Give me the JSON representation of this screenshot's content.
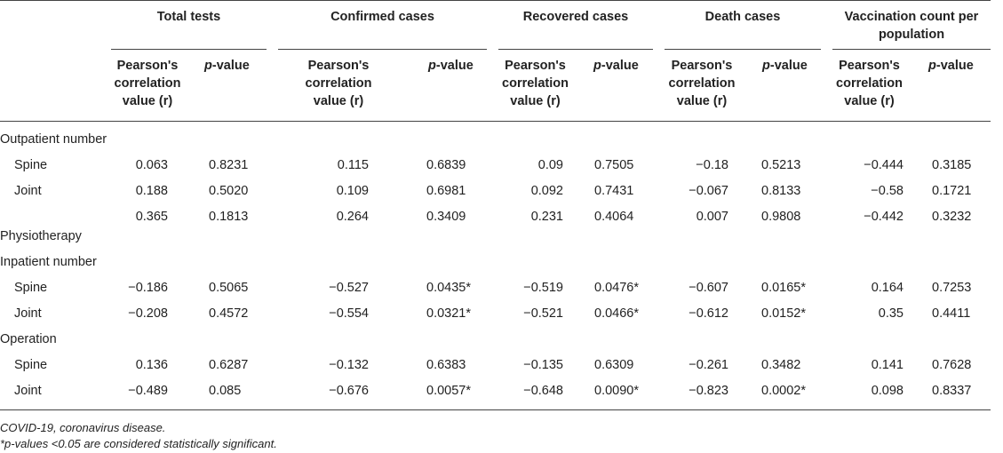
{
  "groups": [
    "Total tests",
    "Confirmed cases",
    "Recovered cases",
    "Death cases",
    "Vaccination count per population"
  ],
  "subheaders": {
    "r": "Pearson's correlation value (r)",
    "p_prefix": "p",
    "p_suffix": "-value"
  },
  "rows": [
    {
      "label": "Outpatient number",
      "values": []
    },
    {
      "label": "Spine",
      "values": [
        "0.063",
        "0.8231",
        "0.115",
        "0.6839",
        "0.09",
        "0.7505",
        "−0.18",
        "0.5213",
        "−0.444",
        "0.3185"
      ]
    },
    {
      "label": "Joint",
      "values": [
        "0.188",
        "0.5020",
        "0.109",
        "0.6981",
        "0.092",
        "0.7431",
        "−0.067",
        "0.8133",
        "−0.58",
        "0.1721"
      ]
    },
    {
      "label": "",
      "values": [
        "0.365",
        "0.1813",
        "0.264",
        "0.3409",
        "0.231",
        "0.4064",
        "0.007",
        "0.9808",
        "−0.442",
        "0.3232"
      ]
    },
    {
      "label": "Physiotherapy",
      "values": []
    },
    {
      "label": "Inpatient number",
      "values": []
    },
    {
      "label": "Spine",
      "values": [
        "−0.186",
        "0.5065",
        "−0.527",
        "0.0435*",
        "−0.519",
        "0.0476*",
        "−0.607",
        "0.0165*",
        "0.164",
        "0.7253"
      ]
    },
    {
      "label": "Joint",
      "values": [
        "−0.208",
        "0.4572",
        "−0.554",
        "0.0321*",
        "−0.521",
        "0.0466*",
        "−0.612",
        "0.0152*",
        "0.35",
        "0.4411"
      ]
    },
    {
      "label": "Operation",
      "values": []
    },
    {
      "label": "Spine",
      "values": [
        "0.136",
        "0.6287",
        "−0.132",
        "0.6383",
        "−0.135",
        "0.6309",
        "−0.261",
        "0.3482",
        "0.141",
        "0.7628"
      ]
    },
    {
      "label": "Joint",
      "values": [
        "−0.489",
        "0.085",
        "−0.676",
        "0.0057*",
        "−0.648",
        "0.0090*",
        "−0.823",
        "0.0002*",
        "0.098",
        "0.8337"
      ]
    }
  ],
  "footnotes": {
    "abbrev": "COVID-19, coronavirus disease.",
    "significance": "*p-values <0.05 are considered statistically significant."
  }
}
